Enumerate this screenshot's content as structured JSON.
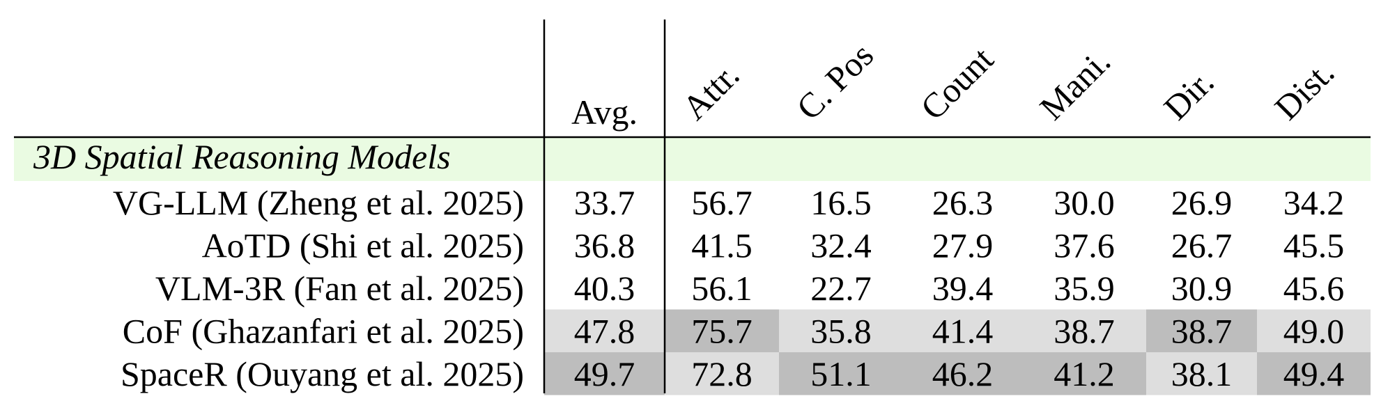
{
  "table": {
    "corner": "",
    "columns": [
      "Avg.",
      "Attr.",
      "C. Pos",
      "Count",
      "Mani.",
      "Dir.",
      "Dist."
    ],
    "section": "3D Spatial Reasoning Models",
    "section_color": "#eafbe2",
    "rows": [
      {
        "label": "VG-LLM (Zheng et al. 2025)",
        "values": [
          "33.7",
          "56.7",
          "16.5",
          "26.3",
          "30.0",
          "26.9",
          "34.2"
        ],
        "shading": [
          null,
          null,
          null,
          null,
          null,
          null,
          null
        ]
      },
      {
        "label": "AoTD (Shi et al. 2025)",
        "values": [
          "36.8",
          "41.5",
          "32.4",
          "27.9",
          "37.6",
          "26.7",
          "45.5"
        ],
        "shading": [
          null,
          null,
          null,
          null,
          null,
          null,
          null
        ]
      },
      {
        "label": "VLM-3R (Fan et al. 2025)",
        "values": [
          "40.3",
          "56.1",
          "22.7",
          "39.4",
          "35.9",
          "30.9",
          "45.6"
        ],
        "shading": [
          null,
          null,
          null,
          null,
          null,
          null,
          null
        ]
      },
      {
        "label": "CoF (Ghazanfari et al. 2025)",
        "values": [
          "47.8",
          "75.7",
          "35.8",
          "41.4",
          "38.7",
          "38.7",
          "49.0"
        ],
        "shading": [
          "#dedede",
          "#bdbdbd",
          "#dedede",
          "#dedede",
          "#dedede",
          "#bdbdbd",
          "#dedede"
        ]
      },
      {
        "label": "SpaceR (Ouyang et al. 2025)",
        "values": [
          "49.7",
          "72.8",
          "51.1",
          "46.2",
          "41.2",
          "38.1",
          "49.4"
        ],
        "shading": [
          "#bdbdbd",
          "#dedede",
          "#bdbdbd",
          "#bdbdbd",
          "#bdbdbd",
          "#dedede",
          "#bdbdbd"
        ]
      }
    ]
  }
}
